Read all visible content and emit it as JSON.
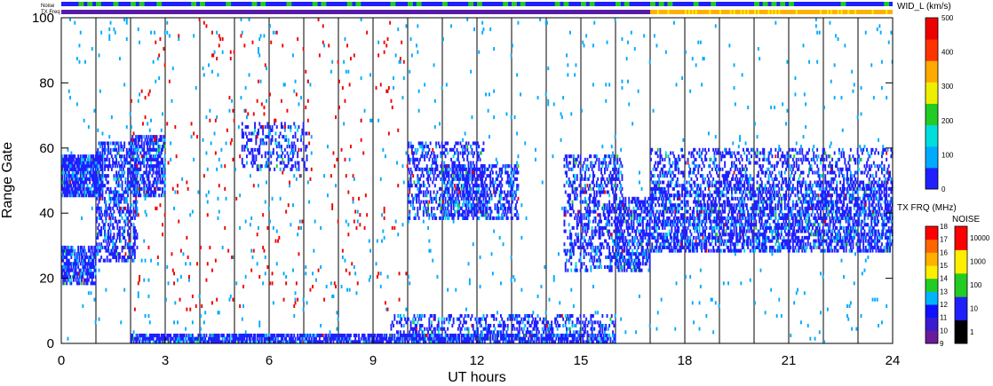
{
  "chart_data": {
    "type": "scatter",
    "top_strips": [
      {
        "label": "Noise"
      },
      {
        "label": "TX Freq"
      }
    ],
    "xlabel": "UT hours",
    "ylabel": "Range Gate",
    "xlim": [
      0,
      24
    ],
    "ylim": [
      0,
      100
    ],
    "x_ticks": [
      0,
      3,
      6,
      9,
      12,
      15,
      18,
      21,
      24
    ],
    "x_tick_labels": [
      "0",
      "3",
      "6",
      "9",
      "12",
      "15",
      "18",
      "21",
      "24"
    ],
    "y_ticks": [
      0,
      20,
      40,
      60,
      80,
      100
    ],
    "y_tick_labels": [
      "0",
      "20",
      "40",
      "60",
      "80",
      "100"
    ],
    "hour_gridlines": [
      1,
      2,
      3,
      4,
      5,
      6,
      7,
      8,
      9,
      10,
      11,
      12,
      13,
      14,
      15,
      16,
      17,
      18,
      19,
      20,
      21,
      22,
      23
    ],
    "parameter_colorbar": {
      "label": "WID_L (km/s)",
      "range": [
        0,
        500
      ],
      "ticks": [
        0,
        100,
        200,
        300,
        400,
        500
      ],
      "tick_labels": [
        "0",
        "100",
        "200",
        "300",
        "400",
        "500"
      ],
      "colors": [
        "#2020ff",
        "#00aaff",
        "#00dddd",
        "#22cc22",
        "#eeee00",
        "#ffaa00",
        "#ff3300",
        "#ee0000"
      ]
    },
    "txfreq_colorbar": {
      "label": "TX FRQ (MHz)",
      "levels": [
        "9",
        "10",
        "11",
        "12",
        "13",
        "14",
        "15",
        "16",
        "17",
        "18"
      ],
      "colors": [
        "#000000",
        "#6a1b9a",
        "#3a1bd0",
        "#1010ff",
        "#00b4ff",
        "#22cc22",
        "#ffee00",
        "#ffb000",
        "#ff6600",
        "#ff0000"
      ]
    },
    "noise_colorbar": {
      "label": "NOISE",
      "levels": [
        "1",
        "10",
        "100",
        "1000",
        "10000"
      ],
      "colors": [
        "#000000",
        "#2020ff",
        "#22cc22",
        "#ffee00",
        "#ff0000"
      ]
    },
    "scatter_regions": [
      {
        "x": [
          0.0,
          1.2
        ],
        "y": [
          45,
          58
        ],
        "level": 0,
        "density": 0.8
      },
      {
        "x": [
          0.0,
          1.0
        ],
        "y": [
          18,
          30
        ],
        "level": 0,
        "density": 0.7
      },
      {
        "x": [
          1.0,
          2.2
        ],
        "y": [
          25,
          62
        ],
        "level": 0,
        "density": 0.45
      },
      {
        "x": [
          2.0,
          3.0
        ],
        "y": [
          45,
          64
        ],
        "level": 0,
        "density": 0.6
      },
      {
        "x": [
          5.2,
          7.1
        ],
        "y": [
          53,
          68
        ],
        "level": 0,
        "density": 0.3
      },
      {
        "x": [
          10.0,
          12.2
        ],
        "y": [
          38,
          62
        ],
        "level": 0,
        "density": 0.35
      },
      {
        "x": [
          11.0,
          13.2
        ],
        "y": [
          38,
          55
        ],
        "level": 0,
        "density": 0.45
      },
      {
        "x": [
          14.5,
          16.2
        ],
        "y": [
          22,
          58
        ],
        "level": 0,
        "density": 0.35
      },
      {
        "x": [
          16.0,
          17.0
        ],
        "y": [
          22,
          45
        ],
        "level": 0,
        "density": 0.55
      },
      {
        "x": [
          17.0,
          24.0
        ],
        "y": [
          28,
          50
        ],
        "level": 0,
        "density": 0.55
      },
      {
        "x": [
          17.0,
          24.0
        ],
        "y": [
          50,
          60
        ],
        "level": 0,
        "density": 0.3
      },
      {
        "x": [
          2.0,
          16.0
        ],
        "y": [
          0,
          3
        ],
        "level": 0,
        "density": 0.75
      },
      {
        "x": [
          9.5,
          16.0
        ],
        "y": [
          3,
          9
        ],
        "level": 0,
        "density": 0.35
      },
      {
        "x": [
          0.0,
          24.0
        ],
        "y": [
          0,
          100
        ],
        "level": 1,
        "density": 0.012
      },
      {
        "x": [
          2.0,
          10.0
        ],
        "y": [
          10,
          100
        ],
        "level": 7,
        "density": 0.012
      }
    ]
  }
}
